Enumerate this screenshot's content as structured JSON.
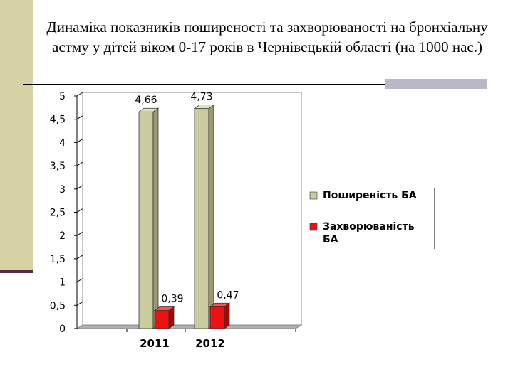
{
  "chart_data": {
    "type": "bar",
    "title": "Динаміка показників поширеності та захворюваності на бронхіальну астму у дітей віком 0-17 років в Чернівецькій області (на 1000 нас.)",
    "categories": [
      "2011",
      "2012"
    ],
    "series": [
      {
        "name": "Поширеність БА",
        "values": [
          4.66,
          4.73
        ],
        "color": "#cbcba0",
        "labels": [
          "4,66",
          "4,73"
        ]
      },
      {
        "name": "Захворюваність БА",
        "values": [
          0.39,
          0.47
        ],
        "color": "#ee1111",
        "labels": [
          "0,39",
          "0,47"
        ]
      }
    ],
    "yticks": [
      "0",
      "0,5",
      "1",
      "1,5",
      "2",
      "2,5",
      "3",
      "3,5",
      "4",
      "4,5",
      "5"
    ],
    "ylim": [
      0,
      5
    ],
    "grid": true,
    "legend": "right"
  }
}
